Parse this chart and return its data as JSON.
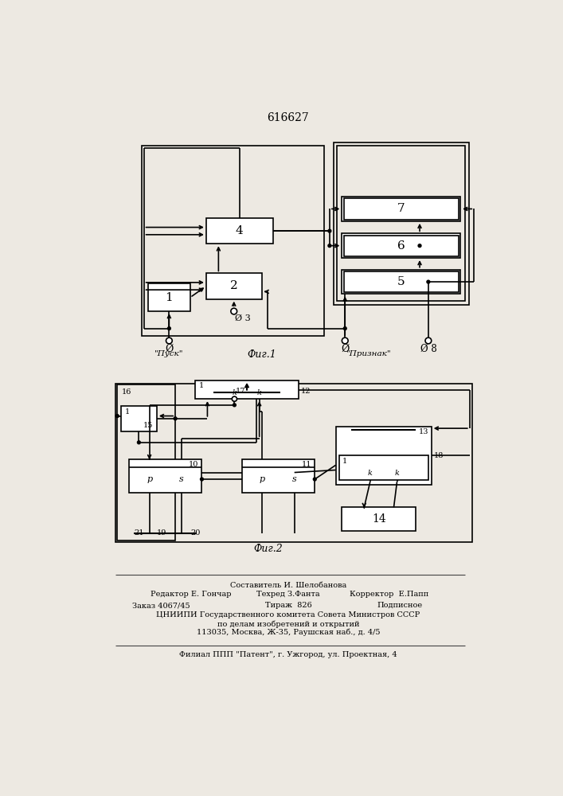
{
  "title": "616627",
  "fig1_label": "Фиг.1",
  "fig2_label": "Фиг.2",
  "background": "#ede9e2",
  "lw": 1.2,
  "footer_items": [
    [
      353,
      207,
      "Составитель И. Шелобанова",
      "center"
    ],
    [
      130,
      192,
      "Редактор Е. Гончар",
      "left"
    ],
    [
      353,
      192,
      "Техред З.Фанта",
      "center"
    ],
    [
      580,
      192,
      "Корректор  Е.Папп",
      "right"
    ],
    [
      100,
      174,
      "Заказ 4067/45",
      "left"
    ],
    [
      353,
      174,
      "Тираж  826",
      "center"
    ],
    [
      570,
      174,
      "Подписное",
      "right"
    ],
    [
      353,
      158,
      "ЦНИИПИ Государственного комитета Совета Министров СССР",
      "center"
    ],
    [
      353,
      144,
      "по делам изобретений и открытий",
      "center"
    ],
    [
      353,
      130,
      "113035, Москва, Ж-35, Раушская наб., д. 4/5",
      "center"
    ],
    [
      353,
      93,
      "Филиал ППП \"Патент\", г. Ужгород, ул. Проектная, 4",
      "center"
    ]
  ]
}
